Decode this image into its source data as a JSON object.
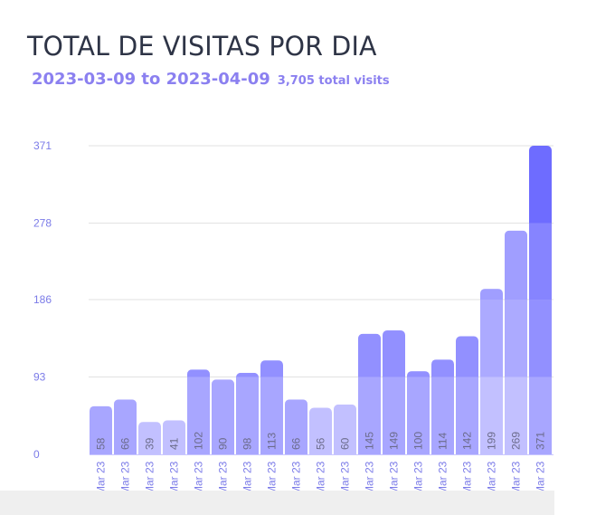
{
  "header": {
    "title": "TOTAL DE VISITAS POR DIA",
    "date_range": "2023-03-09 to 2023-04-09",
    "total_visits": "3,705 total visits"
  },
  "colors": {
    "title": "#2e3446",
    "accent": "#8b80f0",
    "tick": "#7b7be8",
    "grid": "#e2e2e2",
    "bar_normal": "#a8a6ff",
    "bar_light": "#c2c0ff",
    "bar_label": "#6b6b8a"
  },
  "chart_data": {
    "type": "bar",
    "title": "TOTAL DE VISITAS POR DIA",
    "xlabel": "",
    "ylabel": "",
    "ylim": [
      0,
      371
    ],
    "yticks": [
      "0",
      "93",
      "186",
      "278",
      "371"
    ],
    "ytick_values": [
      0,
      93,
      186,
      278,
      371
    ],
    "grid": true,
    "categories": [
      "Mar 23",
      "Mar 23",
      "Mar 23",
      "Mar 23",
      "Mar 23",
      "Mar 23",
      "Mar 23",
      "Mar 23",
      "Mar 23",
      "Mar 23",
      "Mar 23",
      "Mar 23",
      "Mar 23",
      "Mar 23",
      "Mar 23",
      "Mar 23",
      "Mar 23",
      "Mar 23",
      "Mar 23"
    ],
    "values": [
      58,
      66,
      39,
      41,
      102,
      90,
      98,
      113,
      66,
      56,
      60,
      145,
      149,
      100,
      114,
      142,
      199,
      269,
      371
    ],
    "light_bars": [
      false,
      false,
      true,
      true,
      false,
      false,
      false,
      false,
      false,
      true,
      true,
      false,
      false,
      false,
      false,
      false,
      true,
      true,
      false
    ],
    "data_labels": true
  }
}
